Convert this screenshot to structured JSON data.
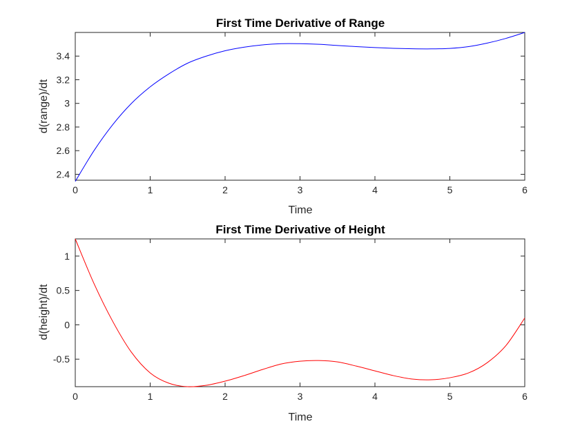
{
  "chart_data": [
    {
      "type": "line",
      "title": "First Time Derivative of Range",
      "xlabel": "Time",
      "ylabel": "d(range)/dt",
      "xlim": [
        0,
        6
      ],
      "ylim": [
        2.35,
        3.6
      ],
      "xticks": [
        0,
        1,
        2,
        3,
        4,
        5,
        6
      ],
      "xtick_labels": [
        "0",
        "1",
        "2",
        "3",
        "4",
        "5",
        "6"
      ],
      "yticks": [
        2.4,
        2.6,
        2.8,
        3.0,
        3.2,
        3.4
      ],
      "ytick_labels": [
        "2.4",
        "2.6",
        "2.8",
        "3",
        "3.2",
        "3.4"
      ],
      "grid": false,
      "series": [
        {
          "color": "#0000ff",
          "x": [
            0,
            0.25,
            0.5,
            0.75,
            1.0,
            1.25,
            1.5,
            1.75,
            2.0,
            2.25,
            2.5,
            2.75,
            3.0,
            3.25,
            3.5,
            3.75,
            4.0,
            4.25,
            4.5,
            4.75,
            5.0,
            5.25,
            5.5,
            5.75,
            6.0
          ],
          "y": [
            2.34,
            2.6,
            2.82,
            3.0,
            3.14,
            3.25,
            3.34,
            3.4,
            3.445,
            3.475,
            3.495,
            3.505,
            3.505,
            3.5,
            3.49,
            3.48,
            3.472,
            3.466,
            3.462,
            3.461,
            3.465,
            3.48,
            3.51,
            3.55,
            3.6
          ]
        }
      ]
    },
    {
      "type": "line",
      "title": "First Time Derivative of Height",
      "xlabel": "Time",
      "ylabel": "d(height)/dt",
      "xlim": [
        0,
        6
      ],
      "ylim": [
        -0.9,
        1.25
      ],
      "xticks": [
        0,
        1,
        2,
        3,
        4,
        5,
        6
      ],
      "xtick_labels": [
        "0",
        "1",
        "2",
        "3",
        "4",
        "5",
        "6"
      ],
      "yticks": [
        -0.5,
        0,
        0.5,
        1
      ],
      "ytick_labels": [
        "-0.5",
        "0",
        "0.5",
        "1"
      ],
      "grid": false,
      "series": [
        {
          "color": "#ff0000",
          "x": [
            0,
            0.25,
            0.5,
            0.75,
            1.0,
            1.25,
            1.5,
            1.75,
            2.0,
            2.25,
            2.5,
            2.75,
            3.0,
            3.25,
            3.5,
            3.75,
            4.0,
            4.25,
            4.5,
            4.75,
            5.0,
            5.25,
            5.5,
            5.75,
            6.0
          ],
          "y": [
            1.25,
            0.6,
            0.05,
            -0.4,
            -0.7,
            -0.85,
            -0.9,
            -0.88,
            -0.82,
            -0.74,
            -0.65,
            -0.57,
            -0.53,
            -0.52,
            -0.54,
            -0.6,
            -0.67,
            -0.74,
            -0.79,
            -0.8,
            -0.77,
            -0.7,
            -0.55,
            -0.3,
            0.1
          ]
        }
      ]
    }
  ]
}
